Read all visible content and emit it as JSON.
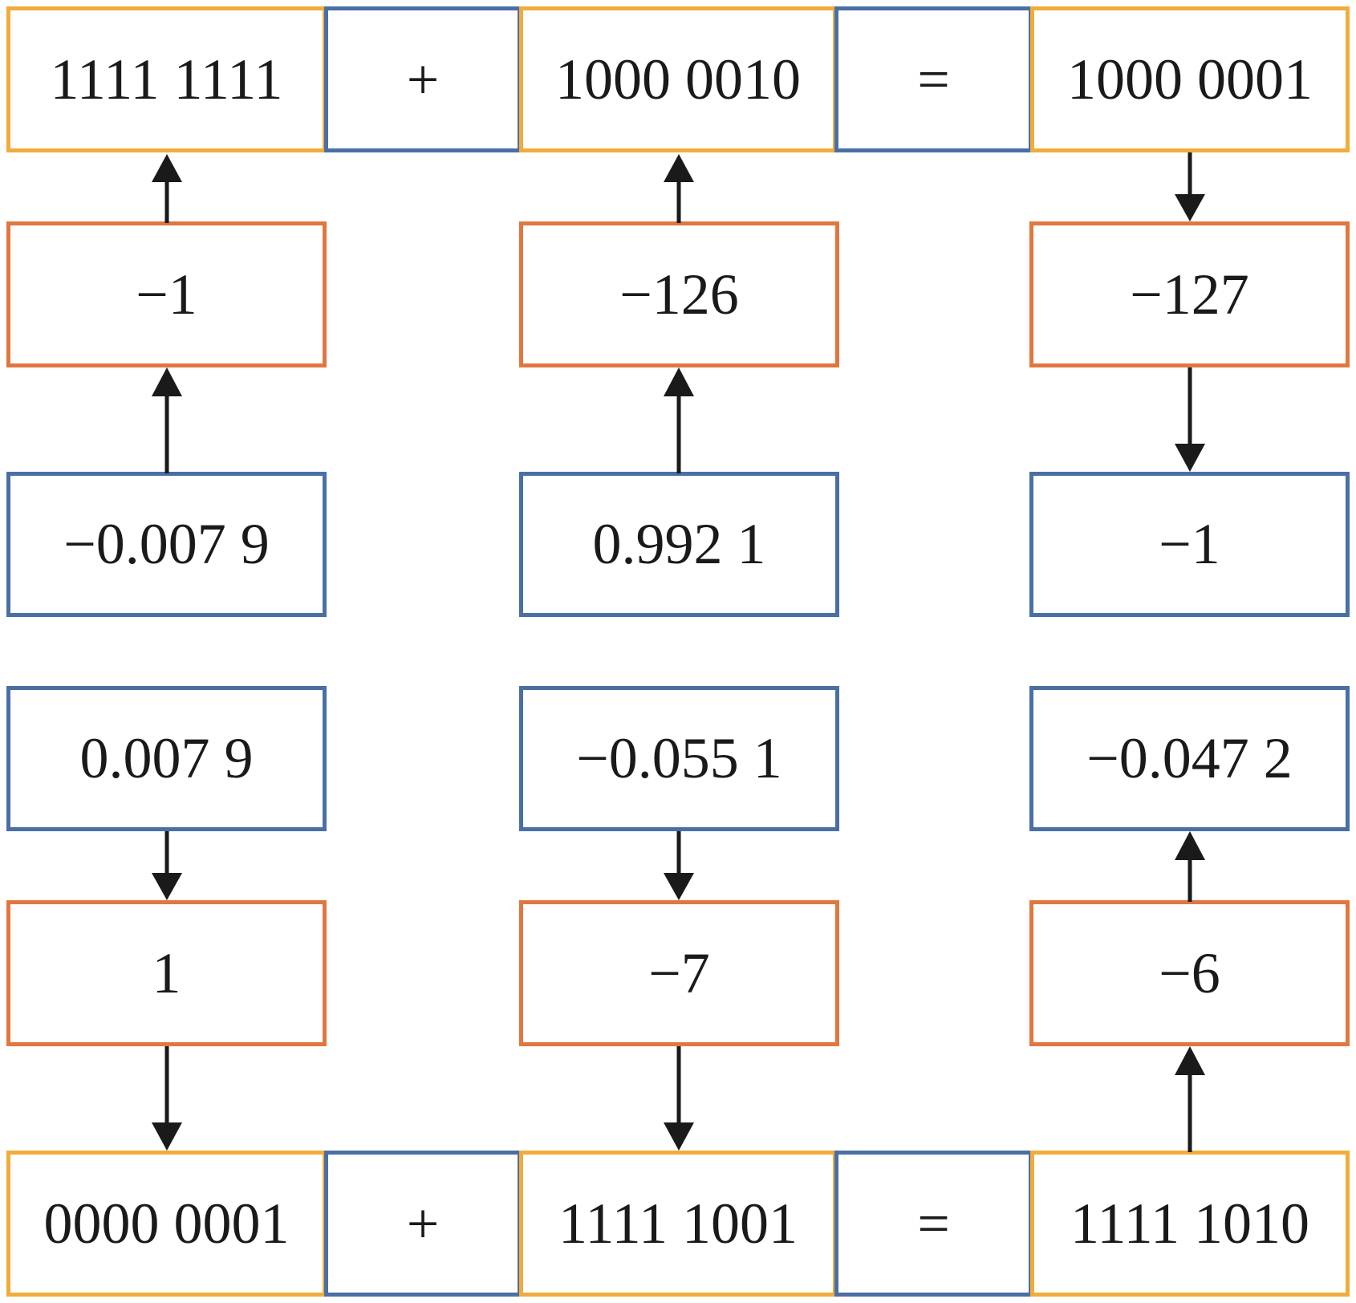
{
  "colors": {
    "binary": "#f0ac3c",
    "float": "#4a6fa5",
    "integer": "#e0773f",
    "arrow": "#1a1a1a"
  },
  "top_equation": {
    "operand_a": "1111 1111",
    "operator": "+",
    "operand_b": "1000 0010",
    "equals": "=",
    "result": "1000 0001"
  },
  "upper_integers": {
    "a": "−1",
    "b": "−126",
    "result": "−127"
  },
  "upper_floats": {
    "a": "−0.007 9",
    "b": "0.992 1",
    "result": "−1"
  },
  "lower_floats": {
    "a": "0.007 9",
    "b": "−0.055 1",
    "result": "−0.047 2"
  },
  "lower_integers": {
    "a": "1",
    "b": "−7",
    "result": "−6"
  },
  "bottom_equation": {
    "operand_a": "0000 0001",
    "operator": "+",
    "operand_b": "1111 1001",
    "equals": "=",
    "result": "1111 1010"
  }
}
